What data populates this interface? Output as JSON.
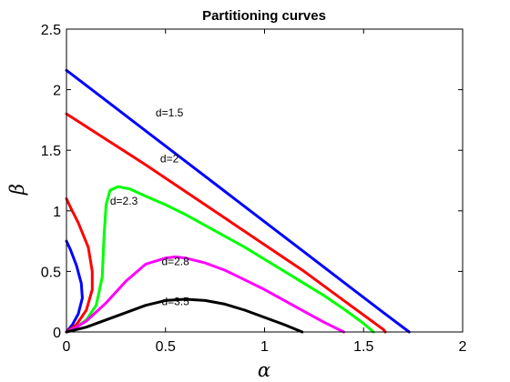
{
  "chart_data": {
    "type": "line",
    "title": "Partitioning curves",
    "xlabel": "α",
    "ylabel": "β",
    "xlim": [
      0,
      2
    ],
    "ylim": [
      0,
      2.5
    ],
    "xticks": [
      "0",
      "0.5",
      "1",
      "1.5",
      "2"
    ],
    "yticks": [
      "0",
      "0.5",
      "1",
      "1.5",
      "2",
      "2.5"
    ],
    "grid": false,
    "legend": "none",
    "series": [
      {
        "name": "d=1.5",
        "color": "#0000ff",
        "segments": [
          [
            [
              0,
              2.16
            ],
            [
              0.2,
              1.91
            ],
            [
              0.4,
              1.66
            ],
            [
              0.6,
              1.41
            ],
            [
              0.8,
              1.16
            ],
            [
              1.0,
              0.91
            ],
            [
              1.2,
              0.66
            ],
            [
              1.4,
              0.41
            ],
            [
              1.6,
              0.16
            ],
            [
              1.73,
              0
            ]
          ],
          [
            [
              0,
              0
            ],
            [
              0.03,
              0.06
            ],
            [
              0.06,
              0.15
            ],
            [
              0.08,
              0.28
            ],
            [
              0.075,
              0.4
            ],
            [
              0.05,
              0.55
            ],
            [
              0.02,
              0.68
            ],
            [
              0,
              0.75
            ]
          ]
        ]
      },
      {
        "name": "d=2",
        "color": "#ff0000",
        "segments": [
          [
            [
              0,
              1.8
            ],
            [
              0.2,
              1.59
            ],
            [
              0.4,
              1.38
            ],
            [
              0.6,
              1.16
            ],
            [
              0.8,
              0.94
            ],
            [
              1.0,
              0.72
            ],
            [
              1.2,
              0.5
            ],
            [
              1.4,
              0.26
            ],
            [
              1.6,
              0.02
            ],
            [
              1.61,
              0
            ]
          ],
          [
            [
              0,
              0
            ],
            [
              0.05,
              0.06
            ],
            [
              0.1,
              0.18
            ],
            [
              0.13,
              0.35
            ],
            [
              0.13,
              0.5
            ],
            [
              0.11,
              0.7
            ],
            [
              0.06,
              0.9
            ],
            [
              0.02,
              1.03
            ],
            [
              0,
              1.1
            ]
          ]
        ]
      },
      {
        "name": "d=2.3",
        "color": "#00ff00",
        "segments": [
          [
            [
              0,
              0
            ],
            [
              0.05,
              0.04
            ],
            [
              0.1,
              0.1
            ],
            [
              0.15,
              0.22
            ],
            [
              0.18,
              0.45
            ],
            [
              0.19,
              0.8
            ],
            [
              0.2,
              1.05
            ],
            [
              0.22,
              1.17
            ],
            [
              0.26,
              1.2
            ],
            [
              0.32,
              1.18
            ],
            [
              0.4,
              1.12
            ],
            [
              0.5,
              1.05
            ],
            [
              0.6,
              0.97
            ],
            [
              0.7,
              0.88
            ],
            [
              0.8,
              0.79
            ],
            [
              0.9,
              0.7
            ],
            [
              1.0,
              0.6
            ],
            [
              1.1,
              0.5
            ],
            [
              1.2,
              0.4
            ],
            [
              1.3,
              0.3
            ],
            [
              1.4,
              0.19
            ],
            [
              1.5,
              0.07
            ],
            [
              1.55,
              0
            ]
          ]
        ]
      },
      {
        "name": "d=2.8",
        "color": "#ff00ff",
        "segments": [
          [
            [
              0,
              0
            ],
            [
              0.05,
              0.04
            ],
            [
              0.1,
              0.09
            ],
            [
              0.2,
              0.24
            ],
            [
              0.3,
              0.42
            ],
            [
              0.4,
              0.56
            ],
            [
              0.5,
              0.61
            ],
            [
              0.55,
              0.62
            ],
            [
              0.6,
              0.61
            ],
            [
              0.7,
              0.57
            ],
            [
              0.8,
              0.51
            ],
            [
              0.9,
              0.43
            ],
            [
              1.0,
              0.35
            ],
            [
              1.1,
              0.26
            ],
            [
              1.2,
              0.17
            ],
            [
              1.3,
              0.08
            ],
            [
              1.4,
              0
            ]
          ]
        ]
      },
      {
        "name": "d=3.5",
        "color": "#000000",
        "segments": [
          [
            [
              0,
              0
            ],
            [
              0.1,
              0.04
            ],
            [
              0.2,
              0.1
            ],
            [
              0.3,
              0.16
            ],
            [
              0.4,
              0.22
            ],
            [
              0.5,
              0.26
            ],
            [
              0.6,
              0.27
            ],
            [
              0.7,
              0.26
            ],
            [
              0.8,
              0.23
            ],
            [
              0.9,
              0.18
            ],
            [
              1.0,
              0.12
            ],
            [
              1.1,
              0.06
            ],
            [
              1.19,
              0
            ]
          ]
        ]
      }
    ],
    "annotations": [
      {
        "text": "d=1.5",
        "x": 0.52,
        "y": 1.78
      },
      {
        "text": "d=2",
        "x": 0.52,
        "y": 1.4
      },
      {
        "text": "d=2.3",
        "x": 0.29,
        "y": 1.05
      },
      {
        "text": "d=2.8",
        "x": 0.55,
        "y": 0.55
      },
      {
        "text": "d=3.5",
        "x": 0.55,
        "y": 0.22
      }
    ]
  }
}
